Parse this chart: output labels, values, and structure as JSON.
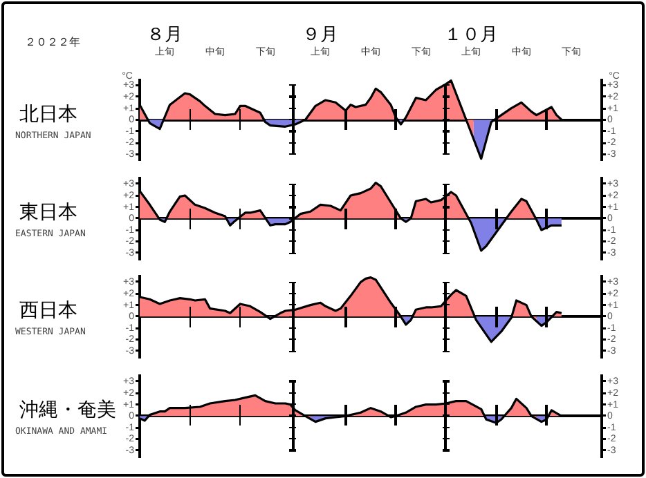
{
  "chart_data": [
    {
      "type": "area",
      "title": "北日本",
      "subtitle": "NORTHERN JAPAN",
      "ylabel": "°C",
      "y2label": "°C",
      "annotations": [
        "２０２２年",
        "８月",
        "９月",
        "１０月"
      ],
      "categories": [
        null,
        null,
        null,
        null,
        null,
        "上旬",
        null,
        null,
        null,
        null,
        null,
        null,
        null,
        null,
        null,
        "中旬",
        null,
        null,
        null,
        null,
        null,
        null,
        null,
        null,
        null,
        "下旬",
        null,
        null,
        null,
        null,
        null,
        null,
        null,
        null,
        null,
        null,
        "上旬",
        null,
        null,
        null,
        null,
        null,
        null,
        null,
        null,
        null,
        "中旬",
        null,
        null,
        null,
        null,
        null,
        null,
        null,
        null,
        null,
        "下旬",
        null,
        null,
        null,
        null,
        null,
        null,
        null,
        null,
        null,
        "上旬",
        null,
        null,
        null,
        null,
        null,
        null,
        null,
        null,
        null,
        "中旬",
        null,
        null,
        null,
        null,
        null,
        null,
        null,
        null,
        null,
        "下旬",
        null,
        null,
        null,
        null,
        null,
        null
      ],
      "values": [
        1.3,
        null,
        -0.3,
        null,
        -0.8,
        null,
        1.3,
        null,
        null,
        2.3,
        2.2,
        null,
        1.6,
        1.2,
        null,
        0.5,
        null,
        0.4,
        null,
        0.5,
        1.2,
        1.2,
        null,
        null,
        0.6,
        -0.2,
        -0.5,
        null,
        null,
        -0.6,
        null,
        -0.4,
        null,
        0,
        null,
        1.2,
        null,
        1.7,
        null,
        1.5,
        null,
        0.8,
        1.3,
        1.1,
        null,
        1.3,
        1.9,
        2.7,
        2.4,
        null,
        1.3,
        0.2,
        -0.4,
        0.2,
        null,
        1.9,
        null,
        1.7,
        null,
        2.6,
        null,
        3.1,
        3.4,
        null,
        null,
        0,
        null,
        null,
        -3.4,
        null,
        -0.2,
        null,
        0.4,
        null,
        1.0,
        null,
        1.5,
        null,
        0.7,
        0.4,
        null,
        null,
        1.1,
        0.4,
        0,
        null,
        null,
        null,
        null,
        null,
        null,
        null,
        null
      ],
      "color": "#000000",
      "colors": [
        "#ff8080",
        null,
        "#8080e6",
        null,
        "#8080e6",
        null,
        "#ff8080",
        null,
        null,
        "#ff8080",
        "#ff8080",
        null,
        "#ff8080",
        "#ff8080",
        null,
        "#ff8080",
        null,
        "#ff8080",
        null,
        "#ff8080",
        "#ff8080",
        "#ff8080",
        null,
        null,
        "#ff8080",
        "#8080e6",
        "#8080e6",
        null,
        null,
        "#8080e6",
        null,
        "#8080e6",
        null,
        "#ff8080",
        null,
        "#ff8080",
        null,
        "#ff8080",
        null,
        "#ff8080",
        null,
        "#ff8080",
        "#ff8080",
        "#ff8080",
        null,
        "#ff8080",
        "#ff8080",
        "#ff8080",
        "#ff8080",
        null,
        "#ff8080",
        "#ff8080",
        "#8080e6",
        "#ff8080",
        null,
        "#ff8080",
        null,
        "#ff8080",
        null,
        "#ff8080",
        null,
        "#ff8080",
        "#ff8080",
        null,
        null,
        "#ff8080",
        null,
        null,
        "#8080e6",
        null,
        "#8080e6",
        null,
        "#ff8080",
        null,
        "#ff8080",
        null,
        "#ff8080",
        null,
        "#ff8080",
        "#ff8080",
        null,
        null,
        "#ff8080",
        "#ff8080",
        "#ff8080",
        null,
        null,
        null,
        null,
        null,
        null,
        null,
        null
      ],
      "ylim": [
        -3.5,
        3.5
      ],
      "yticks": [
        {
          "value": 3,
          "label": "+3"
        },
        {
          "value": 2,
          "label": "+2"
        },
        {
          "value": 1,
          "label": "+1"
        },
        {
          "value": 0,
          "label": "0"
        },
        {
          "value": -1,
          "label": "-1"
        },
        {
          "value": -2,
          "label": "-2"
        },
        {
          "value": -3,
          "label": "-3"
        }
      ],
      "y2lim": [
        -3.5,
        3.5
      ],
      "y2ticks": [
        {
          "value": 3,
          "label": "+3"
        },
        {
          "value": 2,
          "label": "+2"
        },
        {
          "value": 1,
          "label": "+1"
        },
        {
          "value": 0,
          "label": "0"
        },
        {
          "value": -1,
          "label": "-1"
        },
        {
          "value": -2,
          "label": "-2"
        },
        {
          "value": -3,
          "label": "-3"
        }
      ]
    },
    {
      "type": "area",
      "title": "東日本",
      "subtitle": "EASTERN JAPAN",
      "categories": [
        null,
        null,
        null,
        null,
        null,
        null,
        null,
        null,
        null,
        null,
        null,
        null,
        null,
        null,
        null,
        null,
        null,
        null,
        null,
        null,
        null,
        null,
        null,
        null,
        null,
        null,
        null,
        null,
        null,
        null,
        null,
        null,
        null,
        null,
        null,
        null,
        null,
        null,
        null,
        null,
        null,
        null,
        null,
        null,
        null,
        null,
        null,
        null,
        null,
        null,
        null,
        null,
        null,
        null,
        null,
        null,
        null,
        null,
        null,
        null,
        null,
        null,
        null,
        null,
        null,
        null,
        null,
        null,
        null,
        null,
        null,
        null,
        null,
        null,
        null,
        null,
        null,
        null,
        null,
        null,
        null,
        null,
        null,
        null,
        null,
        null,
        null,
        null,
        null,
        null,
        null,
        null,
        null
      ],
      "values": [
        2.4,
        null,
        1.2,
        null,
        -0.1,
        -0.3,
        0.6,
        null,
        1.9,
        2.0,
        null,
        1.2,
        null,
        0.9,
        null,
        0.5,
        null,
        0.2,
        -0.6,
        -0.2,
        null,
        0.5,
        0.5,
        null,
        0.7,
        null,
        -0.6,
        -0.5,
        null,
        -0.5,
        -0.3,
        null,
        0.4,
        null,
        0.6,
        null,
        1.2,
        null,
        1.1,
        null,
        0.7,
        null,
        2.0,
        null,
        2.2,
        null,
        2.6,
        3.1,
        2.8,
        null,
        1.4,
        null,
        0,
        -0.3,
        0,
        1.5,
        null,
        1.7,
        1.4,
        null,
        1.6,
        null,
        2.3,
        2.0,
        null,
        null,
        -0.4,
        null,
        -2.8,
        -2.4,
        null,
        null,
        -0.6,
        null,
        0.6,
        null,
        1.7,
        1.5,
        null,
        -0.1,
        -1.0,
        null,
        -0.6,
        null,
        -0.6,
        null,
        null,
        null,
        null,
        null,
        null,
        null,
        null
      ],
      "color": "#000000",
      "colors": [
        "#ff8080",
        null,
        "#ff8080",
        null,
        "#8080e6",
        "#8080e6",
        "#ff8080",
        null,
        "#ff8080",
        "#ff8080",
        null,
        "#ff8080",
        null,
        "#ff8080",
        null,
        "#ff8080",
        null,
        "#ff8080",
        "#8080e6",
        "#8080e6",
        null,
        "#ff8080",
        "#ff8080",
        null,
        "#ff8080",
        null,
        "#8080e6",
        "#8080e6",
        null,
        "#8080e6",
        "#8080e6",
        null,
        "#ff8080",
        null,
        "#ff8080",
        null,
        "#ff8080",
        null,
        "#ff8080",
        null,
        "#ff8080",
        null,
        "#ff8080",
        null,
        "#ff8080",
        null,
        "#ff8080",
        "#ff8080",
        "#ff8080",
        null,
        "#ff8080",
        null,
        "#ff8080",
        "#8080e6",
        "#ff8080",
        "#ff8080",
        null,
        "#ff8080",
        "#ff8080",
        null,
        "#ff8080",
        null,
        "#ff8080",
        "#ff8080",
        null,
        null,
        "#8080e6",
        null,
        "#8080e6",
        "#8080e6",
        null,
        null,
        "#8080e6",
        null,
        "#ff8080",
        null,
        "#ff8080",
        "#ff8080",
        null,
        "#8080e6",
        "#8080e6",
        null,
        "#8080e6",
        null,
        "#8080e6",
        null,
        null,
        null,
        null,
        null,
        null,
        null,
        null
      ],
      "ylim": [
        -3.5,
        3.5
      ],
      "yticks": [
        {
          "value": 3,
          "label": "+3"
        },
        {
          "value": 2,
          "label": "+2"
        },
        {
          "value": 1,
          "label": "+1"
        },
        {
          "value": 0,
          "label": "0"
        },
        {
          "value": -1,
          "label": "-1"
        },
        {
          "value": -2,
          "label": "-2"
        },
        {
          "value": -3,
          "label": "-3"
        }
      ],
      "y2lim": [
        -3.5,
        3.5
      ],
      "y2ticks": [
        {
          "value": 3,
          "label": "+3"
        },
        {
          "value": 2,
          "label": "+2"
        },
        {
          "value": 1,
          "label": "+1"
        },
        {
          "value": 0,
          "label": "0"
        },
        {
          "value": -1,
          "label": "-1"
        },
        {
          "value": -2,
          "label": "-2"
        },
        {
          "value": -3,
          "label": "-3"
        }
      ],
      "tick_labels": "y"
    },
    {
      "type": "area",
      "title": "西日本",
      "subtitle": "WESTERN JAPAN",
      "categories": [
        null,
        null,
        null,
        null,
        null,
        null,
        null,
        null,
        null,
        null,
        null,
        null,
        null,
        null,
        null,
        null,
        null,
        null,
        null,
        null,
        null,
        null,
        null,
        null,
        null,
        null,
        null,
        null,
        null,
        null,
        null,
        null,
        null,
        null,
        null,
        null,
        null,
        null,
        null,
        null,
        null,
        null,
        null,
        null,
        null,
        null,
        null,
        null,
        null,
        null,
        null,
        null,
        null,
        null,
        null,
        null,
        null,
        null,
        null,
        null,
        null,
        null,
        null,
        null,
        null,
        null,
        null,
        null,
        null,
        null,
        null,
        null,
        null,
        null,
        null,
        null,
        null,
        null,
        null,
        null,
        null,
        null,
        null,
        null,
        null,
        null,
        null,
        null,
        null,
        null,
        null,
        null,
        null
      ],
      "values": [
        1.7,
        null,
        1.5,
        null,
        1.1,
        null,
        1.4,
        null,
        1.6,
        null,
        1.5,
        1.4,
        null,
        1.5,
        0.7,
        null,
        null,
        0.5,
        0.3,
        null,
        1.1,
        null,
        0.9,
        null,
        0.4,
        null,
        -0.2,
        null,
        0.3,
        0.5,
        null,
        0.6,
        null,
        null,
        1.0,
        null,
        1.2,
        0.9,
        null,
        0.5,
        0.7,
        null,
        1.8,
        null,
        3.0,
        3.3,
        3.4,
        3.2,
        null,
        null,
        1.2,
        null,
        0,
        -0.7,
        -0.3,
        0.6,
        null,
        0.8,
        0.8,
        null,
        0.9,
        null,
        1.9,
        2.3,
        null,
        1.8,
        null,
        -0.3,
        null,
        null,
        -2.2,
        null,
        -1.3,
        null,
        -0.1,
        1.4,
        null,
        1.0,
        0,
        null,
        -0.8,
        -0.5,
        null,
        0.4,
        0.3,
        null,
        null,
        null,
        null,
        null,
        null,
        null,
        null
      ],
      "color": "#000000",
      "colors": [
        "#ff8080",
        null,
        "#ff8080",
        null,
        "#ff8080",
        null,
        "#ff8080",
        null,
        "#ff8080",
        null,
        "#ff8080",
        "#ff8080",
        null,
        "#ff8080",
        "#ff8080",
        null,
        null,
        "#ff8080",
        "#ff8080",
        null,
        "#ff8080",
        null,
        "#ff8080",
        null,
        "#ff8080",
        null,
        "#8080e6",
        null,
        "#ff8080",
        "#ff8080",
        null,
        "#ff8080",
        null,
        null,
        "#ff8080",
        null,
        "#ff8080",
        "#ff8080",
        null,
        "#ff8080",
        "#ff8080",
        null,
        "#ff8080",
        null,
        "#ff8080",
        "#ff8080",
        "#ff8080",
        "#ff8080",
        null,
        null,
        "#ff8080",
        null,
        "#ff8080",
        "#8080e6",
        "#8080e6",
        "#ff8080",
        null,
        "#ff8080",
        "#ff8080",
        null,
        "#ff8080",
        null,
        "#ff8080",
        "#ff8080",
        null,
        "#ff8080",
        null,
        "#8080e6",
        null,
        null,
        "#8080e6",
        null,
        "#8080e6",
        null,
        "#8080e6",
        "#ff8080",
        null,
        "#ff8080",
        "#ff8080",
        null,
        "#8080e6",
        "#8080e6",
        null,
        "#ff8080",
        "#ff8080",
        null,
        null,
        null,
        null,
        null,
        null,
        null,
        null
      ],
      "ylim": [
        -3.5,
        3.5
      ],
      "yticks": [
        {
          "value": 3,
          "label": "+3"
        },
        {
          "value": 2,
          "label": "+2"
        },
        {
          "value": 1,
          "label": "+1"
        },
        {
          "value": 0,
          "label": "0"
        },
        {
          "value": -1,
          "label": "-1"
        },
        {
          "value": -2,
          "label": "-2"
        },
        {
          "value": -3,
          "label": "-3"
        }
      ],
      "y2lim": [
        -3.5,
        3.5
      ],
      "y2ticks": [
        {
          "value": 3,
          "label": "+3"
        },
        {
          "value": 2,
          "label": "+2"
        },
        {
          "value": 1,
          "label": "+1"
        },
        {
          "value": 0,
          "label": "0"
        },
        {
          "value": -1,
          "label": "-1"
        },
        {
          "value": -2,
          "label": "-2"
        },
        {
          "value": -3,
          "label": "-3"
        }
      ],
      "tick_labels": "y"
    },
    {
      "type": "area",
      "title": "沖縄・奄美",
      "subtitle": "OKINAWA AND AMAMI",
      "categories": [
        null,
        null,
        null,
        null,
        null,
        null,
        null,
        null,
        null,
        null,
        null,
        null,
        null,
        null,
        null,
        null,
        null,
        null,
        null,
        null,
        null,
        null,
        null,
        null,
        null,
        null,
        null,
        null,
        null,
        null,
        null,
        null,
        null,
        null,
        null,
        null,
        null,
        null,
        null,
        null,
        null,
        null,
        null,
        null,
        null,
        null,
        null,
        null,
        null,
        null,
        null,
        null,
        null,
        null,
        null,
        null,
        null,
        null,
        null,
        null,
        null,
        null,
        null,
        null,
        null,
        null,
        null,
        null,
        null,
        null,
        null,
        null,
        null,
        null,
        null,
        null,
        null,
        null,
        null,
        null,
        null,
        null,
        null,
        null,
        null,
        null,
        null,
        null,
        null,
        null,
        null,
        null,
        null
      ],
      "values": [
        -0.2,
        -0.4,
        0.1,
        null,
        0.4,
        0.4,
        0.7,
        null,
        null,
        0.7,
        null,
        null,
        0.8,
        null,
        1.1,
        null,
        null,
        1.3,
        null,
        1.4,
        null,
        1.6,
        null,
        1.8,
        null,
        1.3,
        null,
        1.1,
        null,
        1.1,
        1.0,
        0.5,
        null,
        0,
        null,
        -0.5,
        null,
        -0.2,
        null,
        -0.1,
        null,
        0,
        null,
        null,
        0.3,
        null,
        0.7,
        null,
        0.4,
        null,
        -0.1,
        0,
        null,
        0.3,
        null,
        0.8,
        null,
        1.0,
        null,
        1.0,
        null,
        1.1,
        null,
        1.3,
        null,
        1.3,
        null,
        null,
        0.6,
        -0.3,
        null,
        -0.6,
        -0.3,
        null,
        0.7,
        1.5,
        null,
        0.7,
        0,
        null,
        -0.5,
        -0.3,
        0.5,
        null,
        0,
        null,
        null,
        null,
        null,
        null,
        null,
        null,
        null
      ],
      "color": "#000000",
      "colors": [
        "#8080e6",
        "#8080e6",
        "#ff8080",
        null,
        "#ff8080",
        "#ff8080",
        "#ff8080",
        null,
        null,
        "#ff8080",
        null,
        null,
        "#ff8080",
        null,
        "#ff8080",
        null,
        null,
        "#ff8080",
        null,
        "#ff8080",
        null,
        "#ff8080",
        null,
        "#ff8080",
        null,
        "#ff8080",
        null,
        "#ff8080",
        null,
        "#ff8080",
        "#ff8080",
        "#ff8080",
        null,
        "#ff8080",
        null,
        "#8080e6",
        null,
        "#8080e6",
        null,
        "#8080e6",
        null,
        "#ff8080",
        null,
        null,
        "#ff8080",
        null,
        "#ff8080",
        null,
        "#ff8080",
        null,
        "#8080e6",
        "#ff8080",
        null,
        "#ff8080",
        null,
        "#ff8080",
        null,
        "#ff8080",
        null,
        "#ff8080",
        null,
        "#ff8080",
        null,
        "#ff8080",
        null,
        "#ff8080",
        null,
        null,
        "#ff8080",
        "#8080e6",
        null,
        "#8080e6",
        "#8080e6",
        null,
        "#ff8080",
        "#ff8080",
        null,
        "#ff8080",
        "#ff8080",
        null,
        "#8080e6",
        "#8080e6",
        "#ff8080",
        null,
        "#ff8080",
        null,
        null,
        null,
        null,
        null,
        null,
        null,
        null
      ],
      "ylim": [
        -3.5,
        3.5
      ],
      "yticks": [
        {
          "value": 3,
          "label": "+3"
        },
        {
          "value": 2,
          "label": "+2"
        },
        {
          "value": 1,
          "label": "+1"
        },
        {
          "value": 0,
          "label": "0"
        },
        {
          "value": -1,
          "label": "-1"
        },
        {
          "value": -2,
          "label": "-2"
        },
        {
          "value": -3,
          "label": "-3"
        }
      ],
      "y2lim": [
        -3.5,
        3.5
      ],
      "y2ticks": [
        {
          "value": 3,
          "label": "+3"
        },
        {
          "value": 2,
          "label": "+2"
        },
        {
          "value": 1,
          "label": "+1"
        },
        {
          "value": 0,
          "label": "0"
        },
        {
          "value": -1,
          "label": "-1"
        },
        {
          "value": -2,
          "label": "-2"
        },
        {
          "value": -3,
          "label": "-3"
        }
      ],
      "tick_labels": "y"
    }
  ]
}
